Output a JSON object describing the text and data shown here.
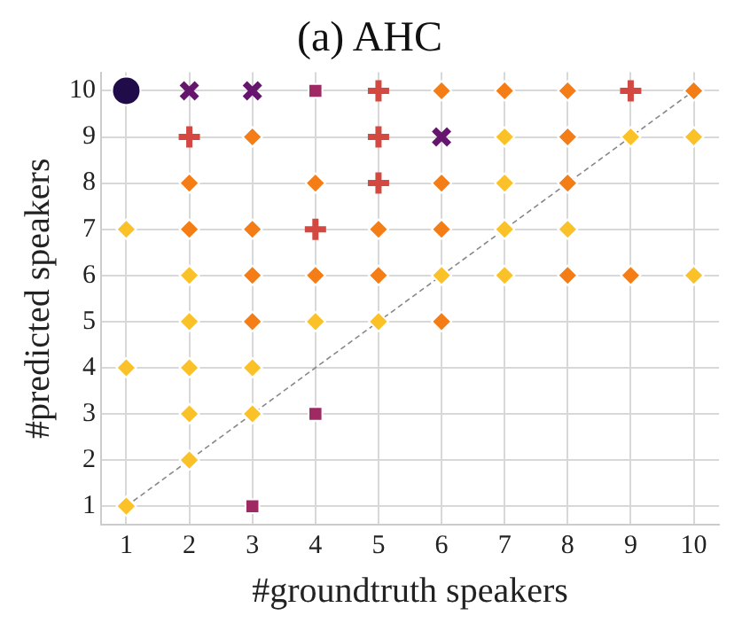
{
  "chart_data": {
    "type": "scatter",
    "title": "(a) AHC",
    "xlabel": "#groundtruth speakers",
    "ylabel": "#predicted speakers",
    "xlim": [
      0.6,
      10.4
    ],
    "ylim": [
      0.6,
      10.4
    ],
    "xticks": [
      1,
      2,
      3,
      4,
      5,
      6,
      7,
      8,
      9,
      10
    ],
    "yticks": [
      1,
      2,
      3,
      4,
      5,
      6,
      7,
      8,
      9,
      10
    ],
    "grid": true,
    "legend": false,
    "series": [
      {
        "type": "line",
        "color": "#888888",
        "line_style": "dashed",
        "marker": "none",
        "x": [
          1,
          10
        ],
        "values": [
          1,
          10
        ]
      },
      {
        "color": "#fac228",
        "marker": "diamond",
        "x": [
          7,
          9,
          10,
          7,
          1,
          7,
          8,
          2,
          6,
          7,
          10,
          2,
          4,
          5,
          1,
          2,
          3,
          2,
          3,
          2,
          1
        ],
        "values": [
          9,
          9,
          9,
          8,
          7,
          7,
          7,
          6,
          6,
          6,
          6,
          5,
          5,
          5,
          4,
          4,
          4,
          3,
          3,
          2,
          1
        ]
      },
      {
        "color": "#f57d15",
        "marker": "diamond",
        "x": [
          6,
          7,
          8,
          10,
          3,
          8,
          2,
          4,
          6,
          8,
          2,
          3,
          5,
          6,
          3,
          4,
          5,
          8,
          9,
          3,
          6
        ],
        "values": [
          10,
          10,
          10,
          10,
          9,
          9,
          8,
          8,
          8,
          8,
          7,
          7,
          7,
          7,
          6,
          6,
          6,
          6,
          6,
          5,
          5
        ]
      },
      {
        "color": "#d44842",
        "marker": "cross",
        "x": [
          5,
          9,
          2,
          5,
          5,
          4
        ],
        "values": [
          10,
          10,
          9,
          9,
          8,
          7
        ]
      },
      {
        "color": "#9f2a63",
        "marker": "square",
        "x": [
          4,
          4,
          3
        ],
        "values": [
          10,
          3,
          1
        ]
      },
      {
        "color": "#65156e",
        "marker": "x",
        "x": [
          2,
          3,
          6
        ],
        "values": [
          10,
          10,
          9
        ]
      },
      {
        "color": "#1f0c48",
        "marker": "circle",
        "x": [
          1
        ],
        "values": [
          10
        ]
      }
    ]
  }
}
